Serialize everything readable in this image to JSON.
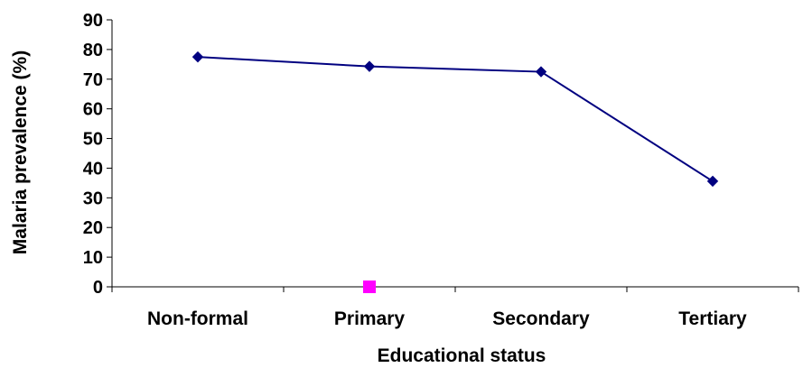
{
  "chart_data": {
    "type": "line",
    "title": "",
    "xlabel": "Educational status",
    "ylabel": "Malaria prevalence (%)",
    "categories": [
      "Non-formal",
      "Primary",
      "Secondary",
      "Tertiary"
    ],
    "ylim": [
      0,
      90
    ],
    "yticks": [
      0,
      10,
      20,
      30,
      40,
      50,
      60,
      70,
      80,
      90
    ],
    "grid": false,
    "legend": "none",
    "series": [
      {
        "values": [
          77.5,
          74.3,
          72.5,
          35.6
        ],
        "color": "#000080",
        "marker": "diamond"
      },
      {
        "values": [
          null,
          0,
          null,
          null
        ],
        "color": "#ff00ff",
        "marker": "square"
      }
    ]
  }
}
